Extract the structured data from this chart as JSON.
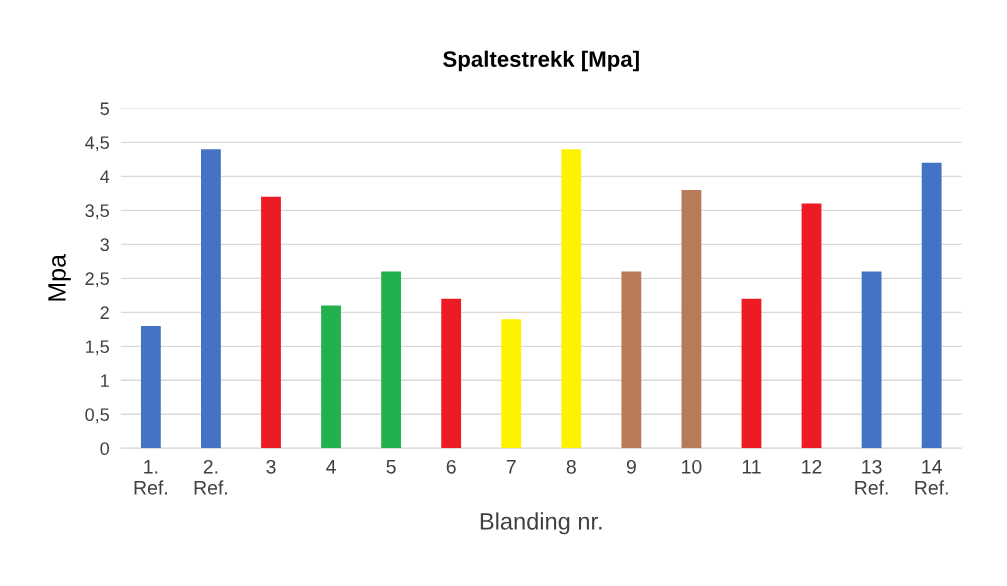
{
  "chart_data": {
    "type": "bar",
    "title": "Spaltestrekk [Mpa]",
    "xlabel": "Blanding nr.",
    "ylabel": "Mpa",
    "categories": [
      "1.\nRef.",
      "2.\nRef.",
      "3",
      "4",
      "5",
      "6",
      "7",
      "8",
      "9",
      "10",
      "11",
      "12",
      "13\nRef.",
      "14\nRef."
    ],
    "values": [
      1.8,
      4.4,
      3.7,
      2.1,
      2.6,
      2.2,
      1.9,
      4.4,
      2.6,
      3.8,
      2.2,
      3.6,
      2.6,
      4.2
    ],
    "colors": [
      "#4472c4",
      "#4472c4",
      "#ed1c24",
      "#22b14c",
      "#22b14c",
      "#ed1c24",
      "#fff200",
      "#fff200",
      "#b97a57",
      "#b97a57",
      "#ed1c24",
      "#ed1c24",
      "#4472c4",
      "#4472c4"
    ],
    "ylim": [
      0,
      5
    ],
    "yticks": [
      0,
      {
        "value": 0.5,
        "label": "0,5"
      },
      1,
      {
        "value": 1.5,
        "label": "1,5"
      },
      2,
      {
        "value": 2.5,
        "label": "2,5"
      },
      3,
      {
        "value": 3.5,
        "label": "3,5"
      },
      4,
      {
        "value": 4.5,
        "label": "4,5"
      },
      5
    ],
    "grid": "y",
    "legend": false
  }
}
